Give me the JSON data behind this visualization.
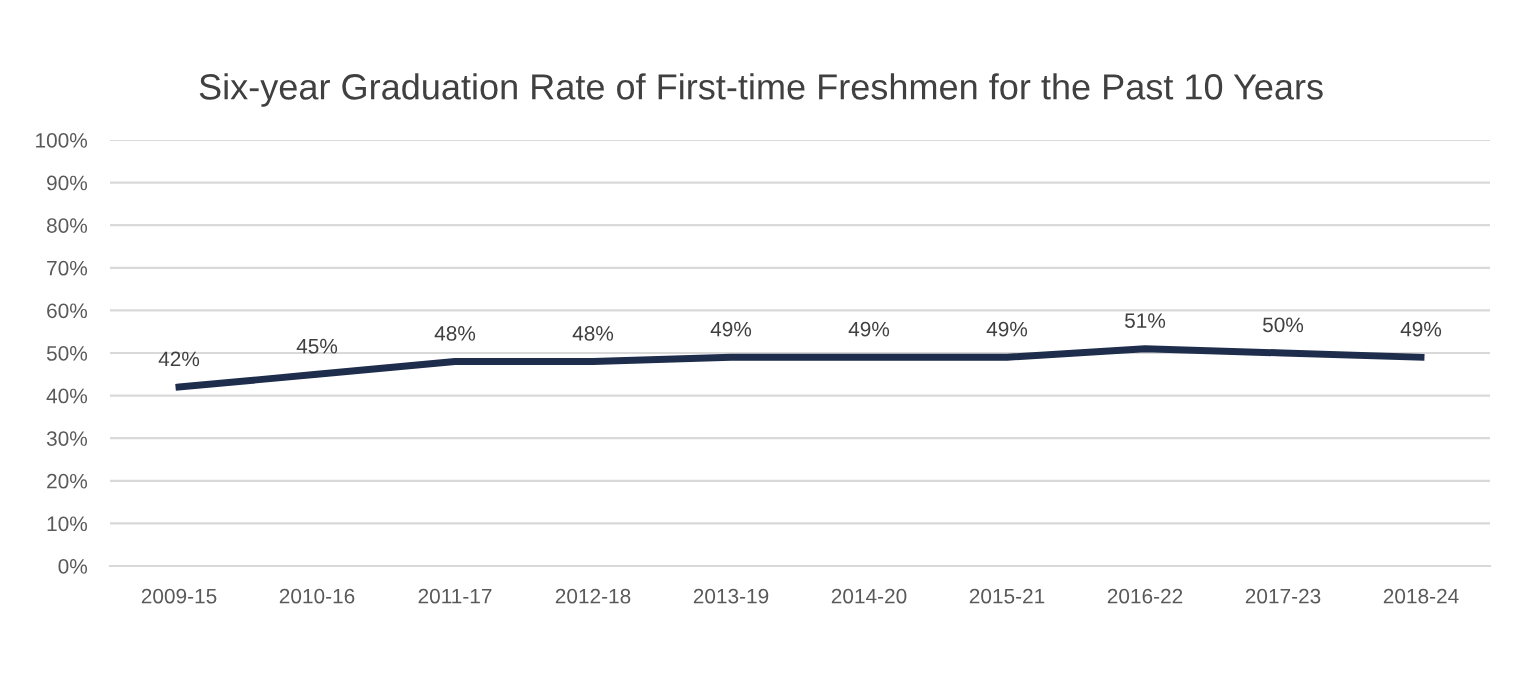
{
  "chart_data": {
    "type": "line",
    "title": "Six-year Graduation Rate of First-time Freshmen for the Past 10 Years",
    "categories": [
      "2009-15",
      "2010-16",
      "2011-17",
      "2012-18",
      "2013-19",
      "2014-20",
      "2015-21",
      "2016-22",
      "2017-23",
      "2018-24"
    ],
    "series": [
      {
        "color": "#1f2d4d",
        "values": [
          42,
          45,
          48,
          48,
          49,
          49,
          49,
          51,
          50,
          49
        ],
        "value_labels": [
          "42%",
          "45%",
          "48%",
          "48%",
          "49%",
          "49%",
          "49%",
          "51%",
          "50%",
          "49%"
        ]
      }
    ],
    "ylim": [
      0,
      100
    ],
    "yticks": [
      {
        "value": 0,
        "label": "0%"
      },
      {
        "value": 10,
        "label": "10%"
      },
      {
        "value": 20,
        "label": "20%"
      },
      {
        "value": 30,
        "label": "30%"
      },
      {
        "value": 40,
        "label": "40%"
      },
      {
        "value": 50,
        "label": "50%"
      },
      {
        "value": 60,
        "label": "60%"
      },
      {
        "value": 70,
        "label": "70%"
      },
      {
        "value": 80,
        "label": "80%"
      },
      {
        "value": 90,
        "label": "90%"
      },
      {
        "value": 100,
        "label": "100%"
      }
    ],
    "grid": "y",
    "legend": false,
    "marker": "none",
    "line_style": "solid"
  }
}
